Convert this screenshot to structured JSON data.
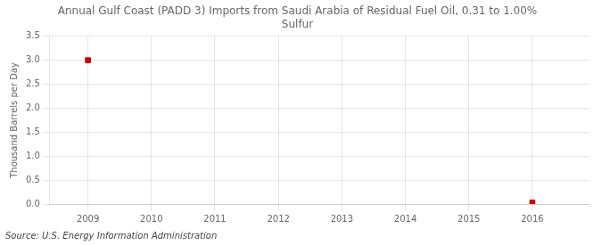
{
  "chart_data": {
    "type": "scatter",
    "title": "Annual Gulf Coast (PADD 3) Imports from Saudi Arabia of Residual Fuel Oil, 0.31 to 1.00%\nSulfur",
    "ylabel": "Thousand Barrels per Day",
    "source": "Source: U.S. Energy Information Administration",
    "x": [
      2009,
      2016
    ],
    "values": [
      3.0,
      0.03
    ],
    "color": "#cc0000",
    "marker": "square",
    "xlim": [
      2008.4,
      2016.9
    ],
    "xticks": [
      2009,
      2010,
      2011,
      2012,
      2013,
      2014,
      2015,
      2016
    ],
    "ylim": [
      0.0,
      3.5
    ],
    "yticks": [
      {
        "value": 0.0,
        "label": "0.0"
      },
      0.5,
      {
        "value": 1.0,
        "label": "1.0"
      },
      1.5,
      {
        "value": 2.0,
        "label": "2.0"
      },
      2.5,
      {
        "value": 3.0,
        "label": "3.0"
      },
      3.5
    ],
    "grid": true
  }
}
